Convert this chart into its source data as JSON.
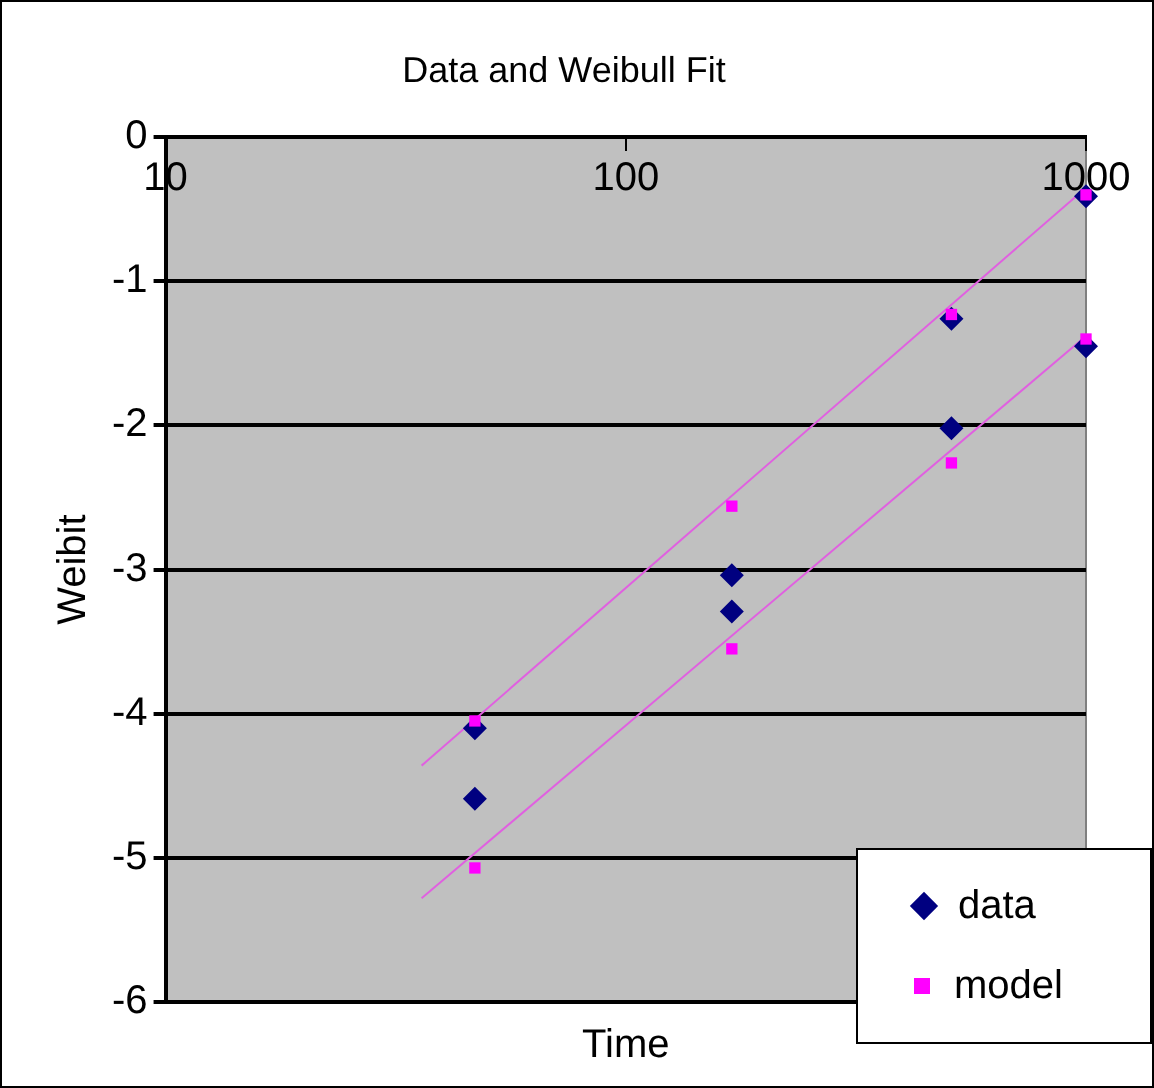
{
  "chart_data": {
    "type": "scatter",
    "title": "Data and Weibull Fit",
    "xlabel": "Time",
    "ylabel": "Weibit",
    "log": "x",
    "xlim": [
      10,
      1000
    ],
    "xticks": [
      10,
      100,
      1000
    ],
    "ylim": [
      -6,
      0
    ],
    "yticks": [
      0,
      -1,
      -2,
      -3,
      -4,
      -5,
      -6
    ],
    "grid": "y",
    "legend": "bottom right",
    "series": [
      {
        "name": "data",
        "color": "#000080",
        "marker": "diamond",
        "x": [
          47,
          47,
          170,
          170,
          510,
          510,
          1000,
          1000
        ],
        "values": [
          -4.1,
          -4.59,
          -3.04,
          -3.29,
          -2.02,
          -1.26,
          -1.45,
          -0.41
        ]
      },
      {
        "name": "model",
        "color": "#ff00ff",
        "marker": "square",
        "x": [
          47,
          47,
          170,
          170,
          510,
          510,
          1000,
          1000
        ],
        "values": [
          -4.05,
          -5.07,
          -2.56,
          -3.55,
          -1.23,
          -2.26,
          -1.4,
          -0.4
        ]
      },
      {
        "type": "line",
        "color": "#e060e0",
        "marker": "none",
        "x": [
          36,
          1000
        ],
        "values": [
          -4.36,
          -0.35
        ]
      },
      {
        "type": "line",
        "color": "#e060e0",
        "marker": "none",
        "x": [
          36,
          1000
        ],
        "values": [
          -5.28,
          -1.38
        ]
      }
    ]
  }
}
